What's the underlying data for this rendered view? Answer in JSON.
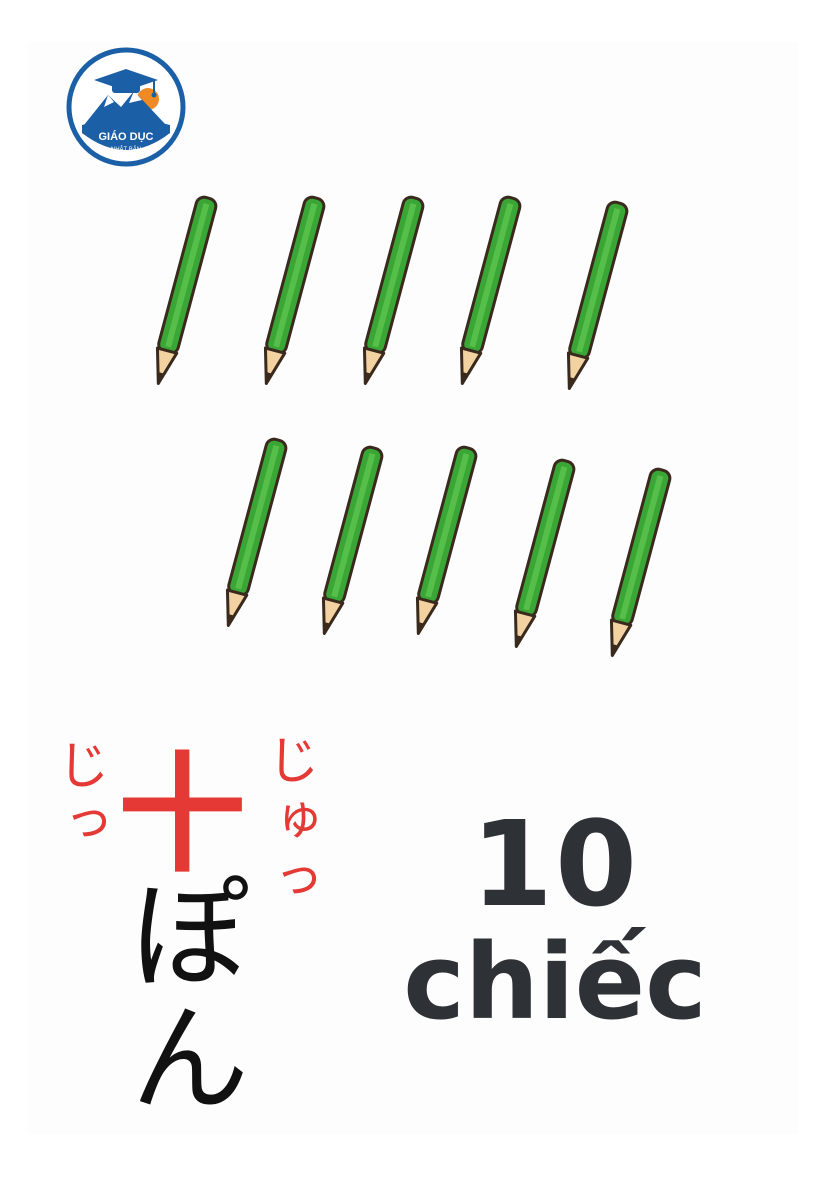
{
  "logo": {
    "text_main": "GIÁO DỤC",
    "text_sub": "NHẬT BẢN",
    "colors": {
      "ring": "#1b5fa7",
      "fill": "#ffffff",
      "band": "#1b5fa7",
      "sun": "#f08a24"
    }
  },
  "illustration": {
    "object": "pencil",
    "count": 10,
    "colors": {
      "body": "#3aa635",
      "body_stripe": "#55bf4a",
      "outline": "#3a2a1e",
      "wood": "#f3d2a2",
      "lead": "#3a2a1e"
    }
  },
  "japanese": {
    "furigana_left": "じっ",
    "kanji": "十",
    "furigana_right": "じゅっ",
    "kana": "ぽん",
    "colors": {
      "furigana": "#e53935",
      "kanji": "#e53935",
      "kana": "#111111"
    }
  },
  "vietnamese": {
    "number": "10",
    "counter": "chiếc",
    "color": "#2e3136"
  }
}
